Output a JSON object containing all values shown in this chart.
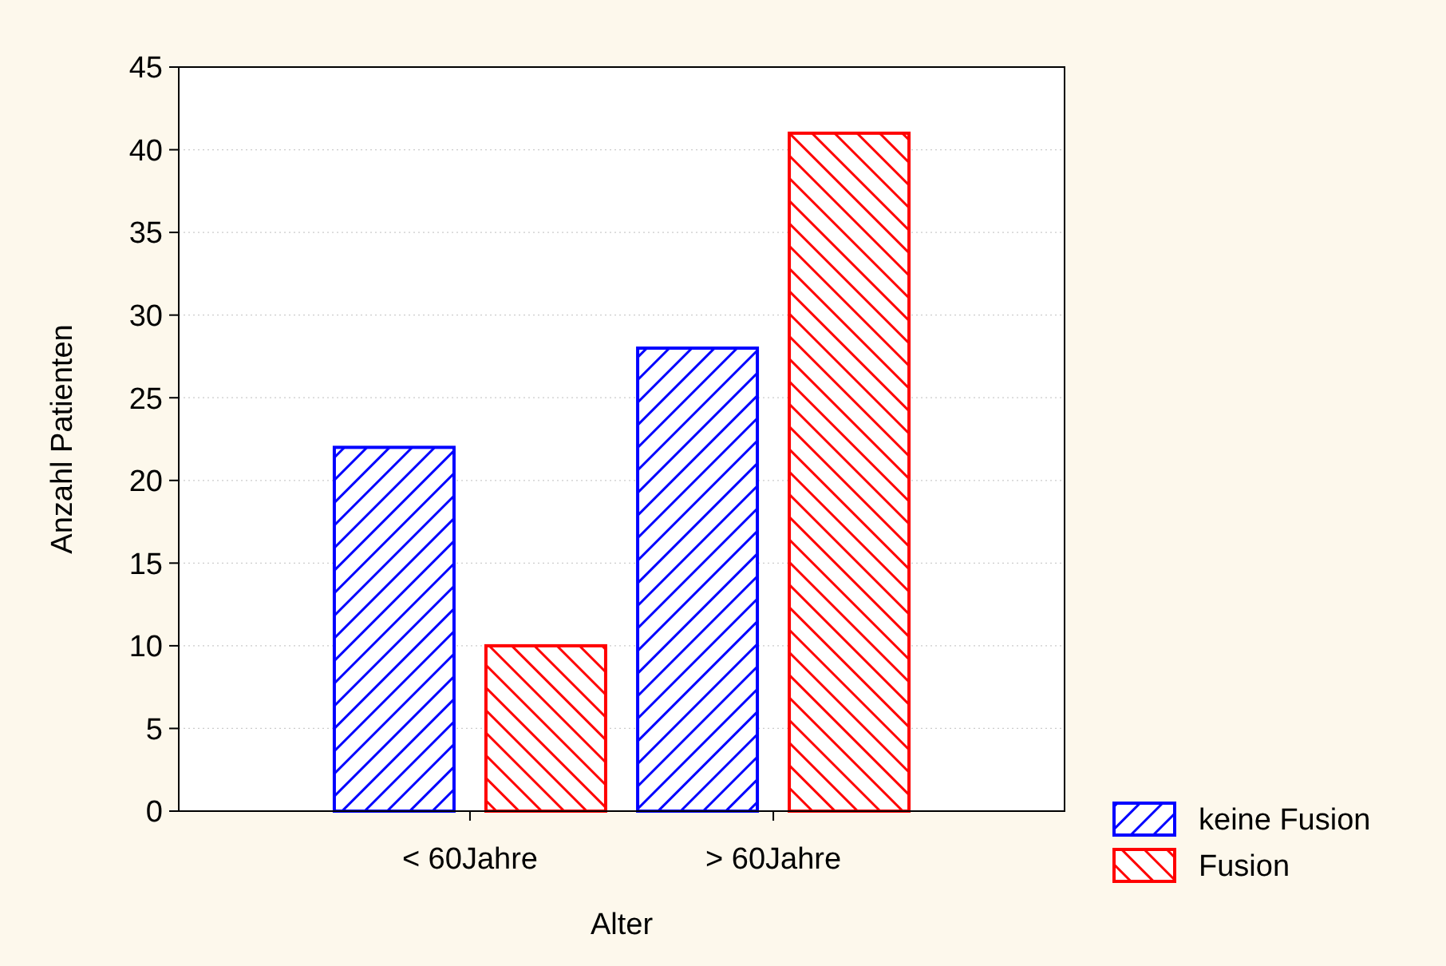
{
  "chart_data": {
    "type": "bar",
    "xlabel": "Alter",
    "ylabel": "Anzahl Patienten",
    "categories": [
      "< 60Jahre",
      "> 60Jahre"
    ],
    "series": [
      {
        "name": "keine Fusion",
        "color": "#0000ff",
        "values": [
          22,
          28
        ]
      },
      {
        "name": "Fusion",
        "color": "#ff0000",
        "values": [
          10,
          41
        ]
      }
    ],
    "ylim": [
      0,
      45
    ],
    "yticks": [
      0,
      5,
      10,
      15,
      20,
      25,
      30,
      35,
      40,
      45
    ],
    "grid": "y",
    "legend": "bottom right"
  }
}
